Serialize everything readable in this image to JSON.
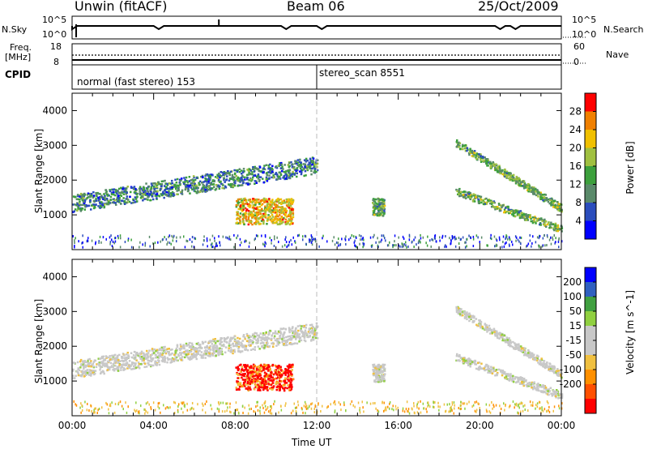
{
  "header": {
    "station": "Unwin (fitACF)",
    "beam": "Beam 06",
    "date": "25/Oct/2009"
  },
  "panels": {
    "nsky": {
      "label": "N.Sky",
      "tick_top": "10^5",
      "tick_bottom": "10^0",
      "right_label": "N.Search",
      "right_tick_top": "10^5",
      "right_tick_bottom": "10^0"
    },
    "freq": {
      "label_line1": "Freq.",
      "label_line2": "[MHz]",
      "tick_top": "18",
      "tick_bottom": "8",
      "right_label": "Nave",
      "right_tick_top": "60",
      "right_tick_bottom": "0"
    },
    "cpid": {
      "label": "CPID",
      "segments": [
        {
          "text": "normal (fast stereo) 153",
          "start": "00:00"
        },
        {
          "text": "stereo_scan 8551",
          "start": "12:00"
        }
      ]
    }
  },
  "colors": {
    "power_scale": [
      "#0000ff",
      "#2b4dbd",
      "#5a8a6a",
      "#3ca03c",
      "#a0c040",
      "#f0c000",
      "#f08000",
      "#ff0000"
    ],
    "velocity_scale": [
      "#ff0000",
      "#ff5000",
      "#ff9000",
      "#f0c040",
      "#c8c8c8",
      "#c8c8c8",
      "#90d040",
      "#40a040",
      "#3060c0",
      "#0000ff"
    ],
    "ground_scatter": "#a0a0a0"
  },
  "chart_data": [
    {
      "type": "heatmap",
      "title": "Power",
      "ylabel": "Slant Range [km]",
      "xlabel": "",
      "x_range_hours": [
        0,
        24
      ],
      "ylim": [
        0,
        4500
      ],
      "yticks": [
        1000,
        2000,
        3000,
        4000
      ],
      "colorbar": {
        "label": "Power [dB]",
        "ticks": [
          4,
          8,
          12,
          16,
          20,
          24,
          28
        ],
        "range": [
          0,
          32
        ]
      },
      "features": [
        {
          "name": "band",
          "start_hour": 0.0,
          "end_hour": 12.0,
          "range_start": 1300,
          "range_end": 2600,
          "power": 10
        },
        {
          "name": "blob",
          "start_hour": 8.0,
          "end_hour": 10.8,
          "range_start": 750,
          "range_end": 1500,
          "power": 22
        },
        {
          "name": "patch",
          "start_hour": 14.7,
          "end_hour": 15.3,
          "range_start": 1000,
          "range_end": 1500,
          "power": 14
        },
        {
          "name": "arc",
          "start_hour": 18.8,
          "end_hour": 24.0,
          "range_start": 500,
          "range_end": 3200,
          "power": 14
        }
      ]
    },
    {
      "type": "heatmap",
      "title": "Velocity",
      "ylabel": "Slant Range [km]",
      "xlabel": "Time UT",
      "x_range_hours": [
        0,
        24
      ],
      "xticks": [
        "00:00",
        "04:00",
        "08:00",
        "12:00",
        "16:00",
        "20:00",
        "00:00"
      ],
      "ylim": [
        0,
        4500
      ],
      "yticks": [
        1000,
        2000,
        3000,
        4000
      ],
      "colorbar": {
        "label": "Velocity [m s^-1]",
        "ticks": [
          200,
          100,
          50,
          15,
          -15,
          -50,
          -100,
          -200
        ]
      },
      "features": [
        {
          "name": "band",
          "start_hour": 0.0,
          "end_hour": 12.0,
          "range_start": 1300,
          "range_end": 2600,
          "velocity": 0
        },
        {
          "name": "blob",
          "start_hour": 8.0,
          "end_hour": 10.8,
          "range_start": 750,
          "range_end": 1500,
          "velocity": -200
        },
        {
          "name": "patch",
          "start_hour": 14.7,
          "end_hour": 15.3,
          "range_start": 1000,
          "range_end": 1500,
          "velocity": 0
        },
        {
          "name": "arc",
          "start_hour": 18.8,
          "end_hour": 24.0,
          "range_start": 500,
          "range_end": 3200,
          "velocity": 0
        }
      ]
    }
  ]
}
